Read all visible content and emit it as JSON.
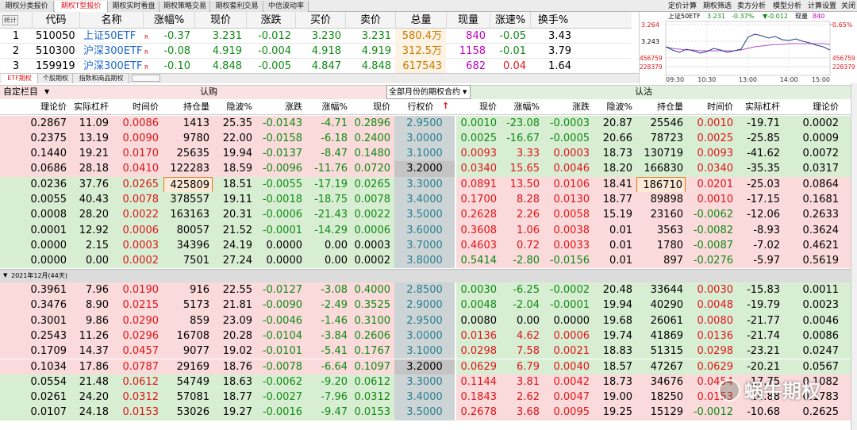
{
  "top_tabs": [
    {
      "label": "期权分类报价"
    },
    {
      "label": "期权T型报价",
      "active": true
    },
    {
      "label": "期权实时看盘"
    },
    {
      "label": "期权策略交易"
    },
    {
      "label": "期权套利交易"
    },
    {
      "label": "中信波动率"
    }
  ],
  "toolbar_links": [
    "定价计算",
    "期权筛选",
    "卖方分析",
    "模型分析",
    "计算设置",
    "关闭"
  ],
  "quote_table": {
    "stat_label": "统计",
    "headers": [
      "代码",
      "名称",
      "涨幅%",
      "现价",
      "涨跌",
      "买价",
      "卖价",
      "总量",
      "现量",
      "涨速%",
      "换手%"
    ],
    "rows": [
      [
        "1",
        "510050",
        "上证50ETF",
        "R",
        "-0.37",
        "3.231",
        "-0.012",
        "3.230",
        "3.231",
        "580.4万",
        "840",
        "-0.05",
        "3.43"
      ],
      [
        "2",
        "510300",
        "沪深300ETF",
        "R",
        "-0.08",
        "4.919",
        "-0.004",
        "4.918",
        "4.919",
        "312.5万",
        "1158",
        "-0.01",
        "3.79"
      ],
      [
        "3",
        "159919",
        "沪深300ETF",
        "R",
        "-0.10",
        "4.848",
        "-0.005",
        "4.847",
        "4.848",
        "617543",
        "682",
        "0.04",
        "1.64"
      ]
    ]
  },
  "mini_chart": {
    "name": "上证50ETF",
    "price": "3.231",
    "change_pct": "-0.37%",
    "change": "▼-0.012",
    "volume_label": "现量",
    "volume": "840",
    "ylim": [
      3.222,
      3.264
    ],
    "yticks": [
      3.264,
      3.243
    ],
    "y2ticks": [
      {
        "value": 3.264,
        "label": "0.65%"
      }
    ],
    "volume_ticks": [
      456759,
      228379
    ],
    "times": [
      "09:30",
      "10:30",
      "13:00",
      "14:00",
      "15:00"
    ],
    "price_series": [
      3.236,
      3.232,
      3.229,
      3.233,
      3.231,
      3.228,
      3.23,
      3.234,
      3.232,
      3.229,
      3.231,
      3.233,
      3.248,
      3.252,
      3.25,
      3.247,
      3.249,
      3.245,
      3.244,
      3.246,
      3.243,
      3.241,
      3.238,
      3.236,
      3.232
    ],
    "avg_series": [
      3.236,
      3.234,
      3.233,
      3.232,
      3.232,
      3.231,
      3.231,
      3.231,
      3.231,
      3.231,
      3.231,
      3.232,
      3.234,
      3.236,
      3.237,
      3.238,
      3.239,
      3.239,
      3.24,
      3.24,
      3.24,
      3.24,
      3.24,
      3.24,
      3.239
    ]
  },
  "sub_tabs": [
    {
      "label": "ETF期权",
      "active": true
    },
    {
      "label": "个股期权"
    },
    {
      "label": "指数和商品期权"
    }
  ],
  "options_board": {
    "custom_label": "自定栏目",
    "call_label": "认购",
    "month_select": "全部月份的期权合约",
    "put_label": "认沽",
    "call_headers": [
      "理论价",
      "实际杠杆",
      "时间价",
      "持仓量",
      "隐波%",
      "涨跌",
      "涨幅%",
      "现价"
    ],
    "strike_header": "行权价",
    "put_headers": [
      "现价",
      "涨幅%",
      "涨跌",
      "隐波%",
      "持仓量",
      "时间价",
      "实际杠杆",
      "理论价"
    ],
    "groups": [
      {
        "rows": [
          {
            "call_itm": true,
            "call": [
              "0.2867",
              "11.09",
              "0.0086",
              "1413",
              "25.35",
              "-0.0143",
              "-4.71",
              "0.2896"
            ],
            "strike": "2.9500",
            "put": [
              "0.0010",
              "-23.08",
              "-0.0003",
              "20.87",
              "25546",
              "0.0010",
              "-19.71",
              "0.0002"
            ]
          },
          {
            "call_itm": true,
            "call": [
              "0.2375",
              "13.19",
              "0.0090",
              "9780",
              "22.00",
              "-0.0158",
              "-6.18",
              "0.2400"
            ],
            "strike": "3.0000",
            "put": [
              "0.0025",
              "-16.67",
              "-0.0005",
              "20.66",
              "78723",
              "0.0025",
              "-25.85",
              "0.0009"
            ]
          },
          {
            "call_itm": true,
            "call": [
              "0.1440",
              "19.21",
              "0.0170",
              "25635",
              "19.94",
              "-0.0137",
              "-8.47",
              "0.1480"
            ],
            "strike": "3.1000",
            "put": [
              "0.0093",
              "3.33",
              "0.0003",
              "18.73",
              "130719",
              "0.0093",
              "-41.62",
              "0.0072"
            ]
          },
          {
            "call_itm": true,
            "atm": true,
            "call": [
              "0.0686",
              "28.18",
              "0.0410",
              "122283",
              "18.59",
              "-0.0096",
              "-11.76",
              "0.0720"
            ],
            "strike": "3.2000",
            "put": [
              "0.0340",
              "15.65",
              "0.0046",
              "18.20",
              "166830",
              "0.0340",
              "-35.35",
              "0.0317"
            ]
          },
          {
            "call_itm": false,
            "highlight": true,
            "call": [
              "0.0236",
              "37.76",
              "0.0265",
              "425809",
              "18.51",
              "-0.0055",
              "-17.19",
              "0.0265"
            ],
            "strike": "3.3000",
            "put": [
              "0.0891",
              "13.50",
              "0.0106",
              "18.41",
              "186710",
              "0.0201",
              "-25.03",
              "0.0864"
            ]
          },
          {
            "call_itm": false,
            "call": [
              "0.0055",
              "40.43",
              "0.0078",
              "378557",
              "19.11",
              "-0.0018",
              "-18.75",
              "0.0078"
            ],
            "strike": "3.4000",
            "put": [
              "0.1700",
              "8.28",
              "0.0130",
              "18.77",
              "89898",
              "0.0010",
              "-17.15",
              "0.1681"
            ]
          },
          {
            "call_itm": false,
            "call": [
              "0.0008",
              "28.20",
              "0.0022",
              "163163",
              "20.31",
              "-0.0006",
              "-21.43",
              "0.0022"
            ],
            "strike": "3.5000",
            "put": [
              "0.2628",
              "2.26",
              "0.0058",
              "15.19",
              "23160",
              "-0.0062",
              "-12.06",
              "0.2633"
            ]
          },
          {
            "call_itm": false,
            "call": [
              "0.0001",
              "12.92",
              "0.0006",
              "80057",
              "21.52",
              "-0.0001",
              "-14.29",
              "0.0006"
            ],
            "strike": "3.6000",
            "put": [
              "0.3608",
              "1.06",
              "0.0038",
              "0.01",
              "3563",
              "-0.0082",
              "-8.93",
              "0.3624"
            ]
          },
          {
            "call_itm": false,
            "call": [
              "0.0000",
              "2.15",
              "0.0003",
              "34396",
              "24.19",
              "0.0000",
              "0.00",
              "0.0003"
            ],
            "strike": "3.7000",
            "put": [
              "0.4603",
              "0.72",
              "0.0033",
              "0.01",
              "1780",
              "-0.0087",
              "-7.02",
              "0.4621"
            ]
          },
          {
            "call_itm": false,
            "call": [
              "0.0000",
              "0.00",
              "0.0002",
              "7501",
              "27.24",
              "0.0000",
              "0.00",
              "0.0002"
            ],
            "strike": "3.8000",
            "put": [
              "0.5414",
              "-2.80",
              "-0.0156",
              "0.01",
              "897",
              "-0.0276",
              "-5.97",
              "0.5619"
            ]
          }
        ]
      },
      {
        "label": "2021年12月(44天)",
        "rows": [
          {
            "call_itm": true,
            "call": [
              "0.3961",
              "7.96",
              "0.0190",
              "916",
              "22.55",
              "-0.0127",
              "-3.08",
              "0.4000"
            ],
            "strike": "2.8500",
            "put": [
              "0.0030",
              "-6.25",
              "-0.0002",
              "20.48",
              "33644",
              "0.0030",
              "-15.83",
              "0.0011"
            ]
          },
          {
            "call_itm": true,
            "call": [
              "0.3476",
              "8.90",
              "0.0215",
              "5173",
              "21.81",
              "-0.0090",
              "-2.49",
              "0.3525"
            ],
            "strike": "2.9000",
            "put": [
              "0.0048",
              "-2.04",
              "-0.0001",
              "19.94",
              "40290",
              "0.0048",
              "-19.79",
              "0.0023"
            ]
          },
          {
            "call_itm": true,
            "call": [
              "0.3001",
              "9.86",
              "0.0290",
              "859",
              "23.09",
              "-0.0046",
              "-1.46",
              "0.3100"
            ],
            "strike": "2.9500",
            "put": [
              "0.0080",
              "0.00",
              "0.0000",
              "19.68",
              "26061",
              "0.0080",
              "-21.77",
              "0.0046"
            ]
          },
          {
            "call_itm": true,
            "call": [
              "0.2543",
              "11.26",
              "0.0296",
              "16708",
              "20.28",
              "-0.0104",
              "-3.84",
              "0.2606"
            ],
            "strike": "3.0000",
            "put": [
              "0.0136",
              "4.62",
              "0.0006",
              "19.74",
              "41869",
              "0.0136",
              "-21.74",
              "0.0086"
            ]
          },
          {
            "call_itm": true,
            "call": [
              "0.1709",
              "14.37",
              "0.0457",
              "9077",
              "19.02",
              "-0.0101",
              "-5.41",
              "0.1767"
            ],
            "strike": "3.1000",
            "put": [
              "0.0298",
              "7.58",
              "0.0021",
              "18.83",
              "51315",
              "0.0298",
              "-23.21",
              "0.0247"
            ]
          },
          {
            "call_itm": true,
            "atm": true,
            "call": [
              "0.1034",
              "17.86",
              "0.0787",
              "29169",
              "18.76",
              "-0.0078",
              "-6.64",
              "0.1097"
            ],
            "strike": "3.2000",
            "put": [
              "0.0629",
              "6.79",
              "0.0040",
              "18.57",
              "47267",
              "0.0629",
              "-20.21",
              "0.0567"
            ]
          },
          {
            "call_itm": false,
            "call": [
              "0.0554",
              "21.48",
              "0.0612",
              "54749",
              "18.63",
              "-0.0062",
              "-9.20",
              "0.0612"
            ],
            "strike": "3.3000",
            "put": [
              "0.1144",
              "3.81",
              "0.0042",
              "18.73",
              "34676",
              "0.0454",
              "-17.75",
              "0.1082"
            ]
          },
          {
            "call_itm": false,
            "call": [
              "0.0261",
              "24.20",
              "0.0312",
              "57081",
              "18.77",
              "-0.0027",
              "-7.96",
              "0.0312"
            ],
            "strike": "3.4000",
            "put": [
              "0.1843",
              "2.62",
              "0.0047",
              "19.00",
              "18250",
              "0.0153",
              "-14.88",
              "0.1783"
            ]
          },
          {
            "call_itm": false,
            "call": [
              "0.0107",
              "24.18",
              "0.0153",
              "53026",
              "19.27",
              "-0.0016",
              "-9.47",
              "0.0153"
            ],
            "strike": "3.5000",
            "put": [
              "0.2678",
              "3.68",
              "0.0095",
              "19.25",
              "15129",
              "-0.0012",
              "-10.68",
              "0.2625"
            ]
          }
        ]
      }
    ]
  },
  "watermark": "蜗牛期权"
}
